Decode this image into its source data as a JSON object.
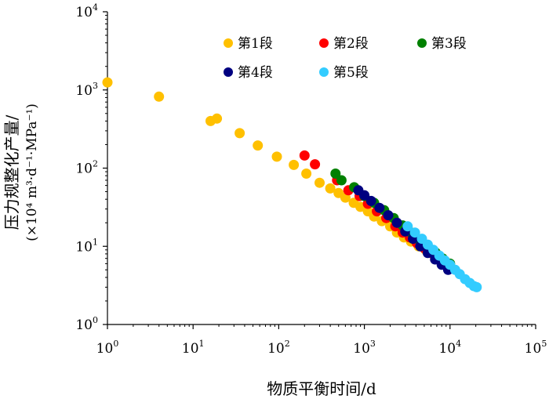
{
  "chart_data": {
    "type": "scatter",
    "xlabel": "物质平衡时间/d",
    "ylabel_line1": "压力规整化产量/",
    "ylabel_line2": "(×10⁴ m³·d⁻¹·MPa⁻¹)",
    "x_scale": "log",
    "y_scale": "log",
    "xlim": [
      1,
      100000
    ],
    "ylim": [
      1,
      10000
    ],
    "x_ticks": [
      {
        "base": "10",
        "exp": "0",
        "value": 1
      },
      {
        "base": "10",
        "exp": "1",
        "value": 10
      },
      {
        "base": "10",
        "exp": "2",
        "value": 100
      },
      {
        "base": "10",
        "exp": "3",
        "value": 1000
      },
      {
        "base": "10",
        "exp": "4",
        "value": 10000
      },
      {
        "base": "10",
        "exp": "5",
        "value": 100000
      }
    ],
    "y_ticks": [
      {
        "base": "10",
        "exp": "0",
        "value": 1
      },
      {
        "base": "10",
        "exp": "1",
        "value": 10
      },
      {
        "base": "10",
        "exp": "2",
        "value": 100
      },
      {
        "base": "10",
        "exp": "3",
        "value": 1000
      },
      {
        "base": "10",
        "exp": "4",
        "value": 10000
      }
    ],
    "grid": false,
    "legend_position": "top-right",
    "series": [
      {
        "name": "第1段",
        "color": "#FFC000",
        "points": [
          [
            1,
            1250
          ],
          [
            4,
            820
          ],
          [
            16,
            400
          ],
          [
            19,
            430
          ],
          [
            35,
            280
          ],
          [
            57,
            195
          ],
          [
            95,
            140
          ],
          [
            150,
            110
          ],
          [
            210,
            85
          ],
          [
            300,
            65
          ],
          [
            400,
            55
          ],
          [
            500,
            48
          ],
          [
            600,
            42
          ],
          [
            750,
            36
          ],
          [
            900,
            32
          ],
          [
            1100,
            28
          ],
          [
            1300,
            24
          ],
          [
            1600,
            21
          ],
          [
            2000,
            18
          ],
          [
            2400,
            15
          ],
          [
            2900,
            13
          ],
          [
            3500,
            11.5
          ],
          [
            4300,
            10
          ],
          [
            5200,
            9
          ],
          [
            6300,
            8
          ],
          [
            7500,
            7.2
          ]
        ]
      },
      {
        "name": "第2段",
        "color": "#FF0000",
        "points": [
          [
            200,
            145
          ],
          [
            265,
            112
          ],
          [
            480,
            70
          ],
          [
            650,
            52
          ],
          [
            880,
            44
          ],
          [
            1100,
            35
          ],
          [
            1400,
            28
          ],
          [
            1800,
            23
          ],
          [
            2300,
            18
          ],
          [
            2800,
            15
          ],
          [
            3400,
            13
          ],
          [
            4100,
            11
          ],
          [
            5000,
            9.5
          ],
          [
            6000,
            8.2
          ],
          [
            7200,
            7
          ]
        ]
      },
      {
        "name": "第3段",
        "color": "#008000",
        "points": [
          [
            460,
            85
          ],
          [
            540,
            70
          ],
          [
            760,
            57
          ],
          [
            1000,
            44
          ],
          [
            1300,
            36
          ],
          [
            1700,
            29
          ],
          [
            2200,
            23
          ],
          [
            2800,
            18.5
          ],
          [
            3500,
            15
          ],
          [
            4400,
            12
          ],
          [
            5500,
            10
          ],
          [
            6800,
            8.3
          ],
          [
            8200,
            7
          ],
          [
            10000,
            6
          ]
        ]
      },
      {
        "name": "第4段",
        "color": "#000080",
        "points": [
          [
            850,
            52
          ],
          [
            1000,
            45
          ],
          [
            1200,
            38
          ],
          [
            1500,
            31
          ],
          [
            1900,
            25
          ],
          [
            2400,
            20
          ],
          [
            3000,
            15.5
          ],
          [
            3700,
            12.5
          ],
          [
            4500,
            10
          ],
          [
            5500,
            8.2
          ],
          [
            6700,
            6.8
          ],
          [
            8000,
            5.8
          ],
          [
            9500,
            5
          ]
        ]
      },
      {
        "name": "第5段",
        "color": "#33CCFF",
        "points": [
          [
            3200,
            18
          ],
          [
            3900,
            15
          ],
          [
            4700,
            12.5
          ],
          [
            5500,
            10.5
          ],
          [
            6400,
            9
          ],
          [
            7500,
            7.6
          ],
          [
            8700,
            6.6
          ],
          [
            10000,
            5.8
          ],
          [
            11500,
            5
          ],
          [
            13000,
            4.4
          ],
          [
            15000,
            3.8
          ],
          [
            17000,
            3.4
          ],
          [
            19000,
            3.1
          ],
          [
            20500,
            3
          ]
        ]
      }
    ]
  }
}
